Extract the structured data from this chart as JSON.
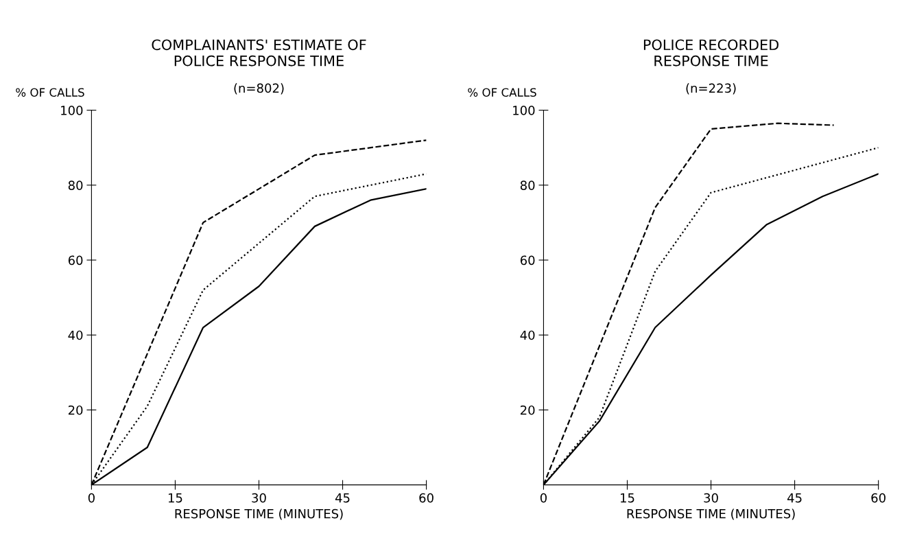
{
  "chart_data": [
    {
      "type": "line",
      "title": "COMPLAINANTS' ESTIMATE OF\nPOLICE RESPONSE TIME",
      "subtitle": "(n=802)",
      "xlabel": "RESPONSE TIME (MINUTES)",
      "ylabel": "% OF CALLS",
      "xlim": [
        0,
        60
      ],
      "ylim": [
        0,
        100
      ],
      "xticks": [
        0,
        15,
        30,
        45,
        60
      ],
      "yticks": [
        20,
        40,
        60,
        80,
        100
      ],
      "grid": false,
      "series": [
        {
          "color": "#000000",
          "line_style": "dashed",
          "x": [
            0,
            20,
            40,
            60
          ],
          "values": [
            0,
            70,
            88,
            92
          ]
        },
        {
          "color": "#000000",
          "line_style": "dotted",
          "x": [
            0,
            10,
            20,
            40,
            50,
            60
          ],
          "values": [
            0,
            21,
            52,
            77,
            80,
            83
          ]
        },
        {
          "color": "#000000",
          "line_style": "solid",
          "x": [
            0,
            10,
            20,
            30,
            40,
            50,
            60
          ],
          "values": [
            0,
            10,
            42,
            53,
            69,
            76,
            79
          ]
        }
      ]
    },
    {
      "type": "line",
      "title": "POLICE RECORDED\nRESPONSE TIME",
      "subtitle": "(n=223)",
      "xlabel": "RESPONSE TIME (MINUTES)",
      "ylabel": "% OF CALLS",
      "xlim": [
        0,
        60
      ],
      "ylim": [
        0,
        100
      ],
      "xticks": [
        0,
        15,
        30,
        45,
        60
      ],
      "yticks": [
        20,
        40,
        60,
        80,
        100
      ],
      "grid": false,
      "series": [
        {
          "color": "#000000",
          "line_style": "dashed",
          "x": [
            0,
            20,
            30,
            42,
            52
          ],
          "values": [
            0,
            74,
            95,
            96.5,
            96
          ]
        },
        {
          "color": "#000000",
          "line_style": "dotted",
          "x": [
            0,
            10,
            20,
            30,
            60
          ],
          "values": [
            0,
            18,
            57,
            78,
            90
          ]
        },
        {
          "color": "#000000",
          "line_style": "solid",
          "x": [
            0,
            10,
            20,
            30,
            40,
            50,
            60
          ],
          "values": [
            0,
            17,
            42,
            56,
            69.5,
            77,
            83
          ]
        }
      ]
    }
  ]
}
